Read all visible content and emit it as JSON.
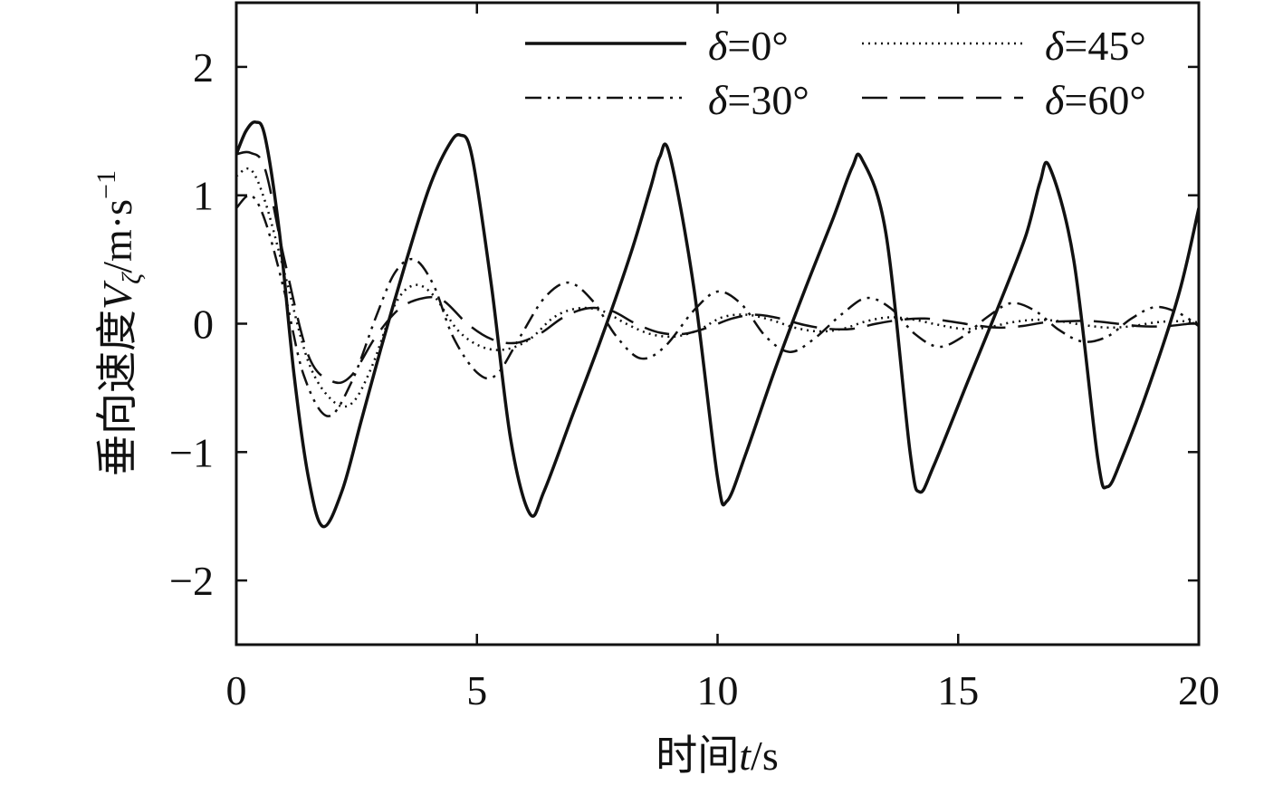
{
  "chart_data": {
    "type": "line",
    "title": "",
    "xlabel": {
      "prefix": "时间",
      "var": "t",
      "unit": "/s"
    },
    "ylabel": {
      "prefix": "垂向速度",
      "var": "V",
      "sub": "ζ",
      "unit": "/m·s",
      "sup": "−1"
    },
    "xlim": [
      0,
      20
    ],
    "ylim": [
      -2.5,
      2.5
    ],
    "xticks": [
      0,
      5,
      10,
      15,
      20
    ],
    "xtick_labels": [
      "0",
      "5",
      "10",
      "15",
      "20"
    ],
    "yticks": [
      2,
      1,
      0,
      -1,
      -2
    ],
    "ytick_labels": [
      "2",
      "1",
      "0",
      "−1",
      "−2"
    ],
    "grid": false,
    "legend_position": "top-right",
    "series": [
      {
        "name": "δ=0°",
        "legend_sym": "δ",
        "legend_rest": "=0°",
        "dash": "solid",
        "color": "#111111",
        "x": [
          0,
          0.2,
          0.4,
          0.6,
          0.9,
          1.2,
          1.5,
          1.8,
          2.2,
          2.6,
          3.0,
          3.5,
          4.0,
          4.4,
          4.65,
          4.9,
          5.3,
          5.7,
          6.1,
          6.4,
          7.0,
          7.6,
          8.2,
          8.6,
          8.8,
          9.0,
          9.5,
          10.0,
          10.2,
          10.6,
          11.2,
          11.8,
          12.4,
          12.8,
          13.0,
          13.5,
          14.0,
          14.2,
          14.5,
          15.2,
          15.8,
          16.4,
          16.7,
          16.9,
          17.4,
          17.9,
          18.1,
          18.4,
          19.0,
          19.6,
          20.0
        ],
        "y": [
          1.32,
          1.5,
          1.57,
          1.45,
          0.7,
          -0.4,
          -1.2,
          -1.58,
          -1.3,
          -0.75,
          -0.2,
          0.45,
          1.05,
          1.38,
          1.47,
          1.3,
          0.3,
          -0.9,
          -1.48,
          -1.3,
          -0.7,
          -0.1,
          0.55,
          1.05,
          1.3,
          1.32,
          0.3,
          -1.2,
          -1.38,
          -1.0,
          -0.35,
          0.25,
          0.82,
          1.22,
          1.28,
          0.7,
          -1.0,
          -1.31,
          -1.1,
          -0.45,
          0.1,
          0.68,
          1.1,
          1.22,
          0.5,
          -1.05,
          -1.27,
          -1.05,
          -0.45,
          0.25,
          0.9
        ]
      },
      {
        "name": "δ=45°",
        "legend_sym": "δ",
        "legend_rest": "=45°",
        "dash": "dotted",
        "color": "#111111",
        "x": [
          0,
          0.3,
          0.6,
          1.0,
          1.5,
          2.0,
          2.4,
          2.8,
          3.3,
          3.7,
          4.1,
          4.6,
          5.1,
          5.6,
          6.1,
          6.6,
          7.1,
          7.6,
          8.1,
          8.6,
          9.1,
          9.6,
          10.1,
          10.6,
          11.1,
          11.6,
          12.1,
          12.6,
          13.1,
          13.6,
          14.1,
          14.6,
          15.1,
          15.6,
          16.1,
          16.6,
          17.1,
          17.6,
          18.1,
          18.6,
          19.1,
          19.6,
          20.0
        ],
        "y": [
          1.15,
          1.2,
          0.95,
          0.4,
          -0.3,
          -0.6,
          -0.62,
          -0.35,
          0.15,
          0.3,
          0.22,
          -0.05,
          -0.18,
          -0.2,
          -0.12,
          0.05,
          0.12,
          0.1,
          0.0,
          -0.08,
          -0.1,
          -0.05,
          0.05,
          0.07,
          0.03,
          -0.03,
          -0.06,
          -0.04,
          0.02,
          0.05,
          0.03,
          -0.01,
          -0.04,
          -0.03,
          0.01,
          0.03,
          0.02,
          -0.01,
          -0.03,
          -0.02,
          0.01,
          0.02,
          0.01
        ]
      },
      {
        "name": "δ=30°",
        "legend_sym": "δ",
        "legend_rest": "=30°",
        "dash": "dashdotdot",
        "color": "#111111",
        "x": [
          0,
          0.3,
          0.6,
          1.0,
          1.4,
          1.9,
          2.4,
          2.9,
          3.3,
          3.7,
          4.1,
          4.5,
          5.0,
          5.4,
          5.9,
          6.4,
          6.9,
          7.4,
          7.9,
          8.4,
          8.9,
          9.5,
          10.0,
          10.5,
          11.0,
          11.5,
          12.0,
          12.6,
          13.1,
          13.6,
          14.1,
          14.6,
          15.1,
          15.6,
          16.1,
          16.6,
          17.1,
          17.6,
          18.1,
          18.6,
          19.1,
          19.6,
          20.0
        ],
        "y": [
          0.9,
          1.0,
          0.8,
          0.25,
          -0.4,
          -0.72,
          -0.45,
          0.05,
          0.4,
          0.5,
          0.3,
          -0.1,
          -0.38,
          -0.4,
          -0.1,
          0.2,
          0.32,
          0.18,
          -0.1,
          -0.27,
          -0.18,
          0.1,
          0.25,
          0.15,
          -0.1,
          -0.22,
          -0.12,
          0.08,
          0.2,
          0.12,
          -0.08,
          -0.18,
          -0.1,
          0.05,
          0.16,
          0.1,
          -0.05,
          -0.14,
          -0.1,
          0.04,
          0.13,
          0.08,
          -0.02
        ]
      },
      {
        "name": "δ=60°",
        "legend_sym": "δ",
        "legend_rest": "=60°",
        "dash": "dashed",
        "color": "#111111",
        "x": [
          0,
          0.3,
          0.6,
          1.0,
          1.5,
          2.0,
          2.4,
          2.9,
          3.4,
          3.9,
          4.3,
          4.8,
          5.3,
          5.8,
          6.3,
          6.8,
          7.3,
          7.8,
          8.3,
          8.8,
          9.3,
          9.8,
          10.3,
          10.8,
          11.3,
          11.8,
          12.3,
          12.8,
          13.3,
          13.8,
          14.3,
          14.8,
          15.3,
          15.8,
          16.3,
          16.8,
          17.3,
          17.8,
          18.3,
          18.8,
          19.3,
          19.8,
          20.0
        ],
        "y": [
          1.32,
          1.33,
          1.2,
          0.5,
          -0.25,
          -0.45,
          -0.4,
          -0.1,
          0.12,
          0.2,
          0.18,
          0.0,
          -0.12,
          -0.15,
          -0.08,
          0.05,
          0.12,
          0.1,
          0.0,
          -0.07,
          -0.08,
          -0.03,
          0.04,
          0.07,
          0.04,
          -0.01,
          -0.04,
          -0.04,
          0.0,
          0.03,
          0.04,
          0.02,
          -0.01,
          -0.03,
          -0.02,
          0.01,
          0.02,
          0.02,
          0.0,
          -0.02,
          -0.02,
          0.0,
          0.01
        ]
      }
    ]
  }
}
